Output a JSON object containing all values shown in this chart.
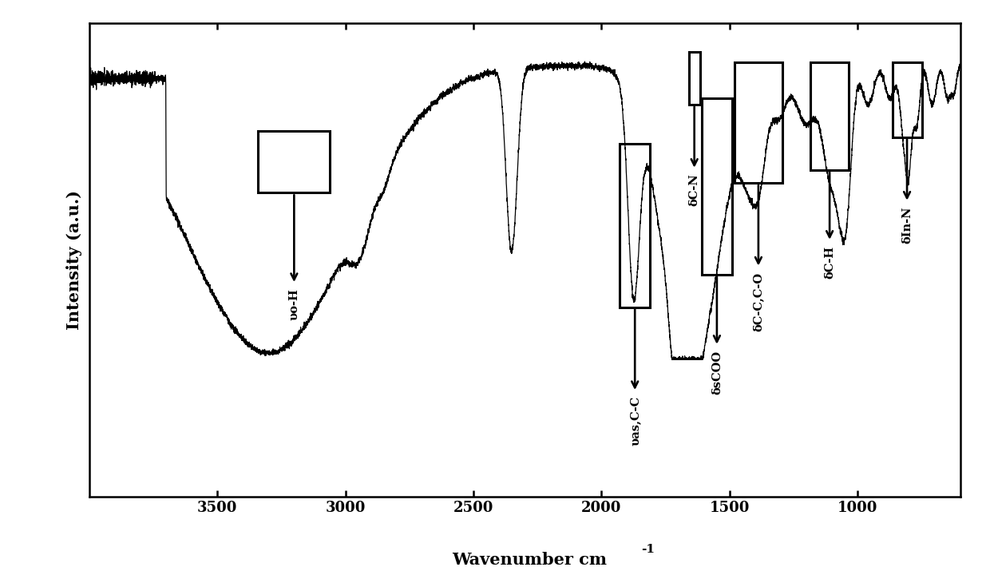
{
  "ylabel": "Intensity (a.u.)",
  "xlim_left": 4000,
  "xlim_right": 600,
  "background_color": "#ffffff",
  "line_color": "#000000",
  "xticks": [
    3500,
    3000,
    2500,
    2000,
    1500,
    1000
  ],
  "spectrum_seed": 17
}
